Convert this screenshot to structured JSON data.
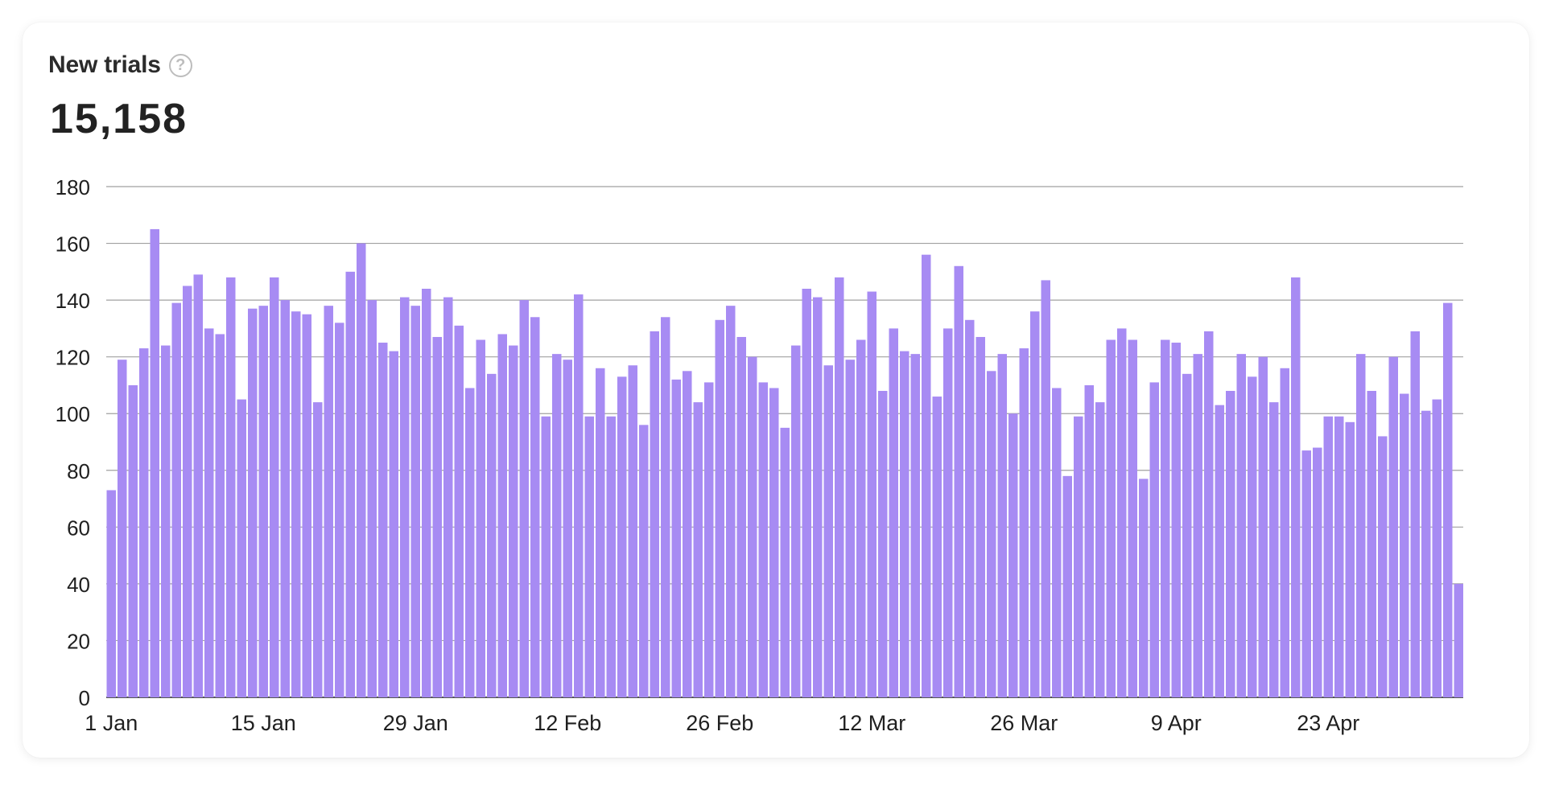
{
  "card": {
    "title": "New trials",
    "help_glyph": "?",
    "total": "15,158"
  },
  "icons": {
    "help": "question-circle-icon"
  },
  "colors": {
    "bar": "#a78bf3",
    "grid": "#a0a0a0",
    "text": "#1f1f1f"
  },
  "chart_data": {
    "type": "bar",
    "title": "New trials",
    "xlabel": "",
    "ylabel": "",
    "ylim": [
      0,
      180
    ],
    "yticks": [
      0,
      20,
      40,
      60,
      80,
      100,
      120,
      140,
      160,
      180
    ],
    "grid": true,
    "start_date": "1 Jan",
    "xtick_labels": [
      {
        "index": 0,
        "label": "1 Jan"
      },
      {
        "index": 14,
        "label": "15 Jan"
      },
      {
        "index": 28,
        "label": "29 Jan"
      },
      {
        "index": 42,
        "label": "12 Feb"
      },
      {
        "index": 56,
        "label": "26 Feb"
      },
      {
        "index": 70,
        "label": "12 Mar"
      },
      {
        "index": 84,
        "label": "26 Mar"
      },
      {
        "index": 98,
        "label": "9 Apr"
      },
      {
        "index": 112,
        "label": "23 Apr"
      }
    ],
    "values": [
      73,
      119,
      110,
      123,
      165,
      124,
      139,
      145,
      149,
      130,
      128,
      148,
      105,
      137,
      138,
      148,
      140,
      136,
      135,
      104,
      138,
      132,
      150,
      160,
      140,
      125,
      122,
      141,
      138,
      144,
      127,
      141,
      131,
      109,
      126,
      114,
      128,
      124,
      140,
      134,
      99,
      121,
      119,
      142,
      99,
      116,
      99,
      113,
      117,
      96,
      129,
      134,
      112,
      115,
      104,
      111,
      133,
      138,
      127,
      120,
      111,
      109,
      95,
      124,
      144,
      141,
      117,
      148,
      119,
      126,
      143,
      108,
      130,
      122,
      121,
      156,
      106,
      130,
      152,
      133,
      127,
      115,
      121,
      100,
      123,
      136,
      147,
      109,
      78,
      99,
      110,
      104,
      126,
      130,
      126,
      77,
      111,
      126,
      125,
      114,
      121,
      129,
      103,
      108,
      121,
      113,
      120,
      104,
      116,
      148,
      87,
      88,
      99,
      99,
      97,
      121,
      108,
      92,
      120,
      107,
      129,
      101,
      105,
      139,
      40
    ]
  }
}
